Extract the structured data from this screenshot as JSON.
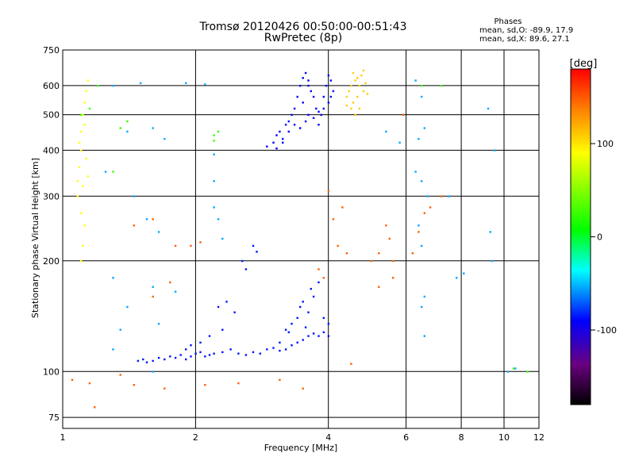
{
  "chart_data": {
    "type": "scatter",
    "title": "Tromsø 20120426 00:50:00-00:51:43",
    "subtitle": "RwPretec (8p)",
    "xlabel": "Frequency [MHz]",
    "ylabel": "Stationary phase Virtual Height [km]",
    "x_scale": "log",
    "y_scale": "log",
    "xlim": [
      1,
      12
    ],
    "ylim": [
      70,
      750
    ],
    "x_ticks": [
      1,
      2,
      4,
      6,
      8,
      10,
      12
    ],
    "x_tick_labels": [
      "1",
      "2",
      "4",
      "6",
      "8",
      "10",
      "12"
    ],
    "y_ticks": [
      75,
      100,
      200,
      300,
      400,
      500,
      600,
      750
    ],
    "y_tick_labels": [
      "75",
      "100",
      "200",
      "300",
      "400",
      "500",
      "600",
      "750"
    ],
    "grid": true,
    "phase_info": {
      "heading": "Phases",
      "o_line": "mean, sd,O: -89.9, 17.9",
      "x_line": "mean, sd,X:  89.6, 27.1"
    },
    "colorbar": {
      "label": "[deg]",
      "ticks": [
        100,
        0,
        -100
      ],
      "tick_labels": [
        "100",
        "0",
        "-100"
      ],
      "range": [
        -180,
        180
      ]
    },
    "series": [
      {
        "points": [
          [
            1.48,
            107
          ],
          [
            1.52,
            108
          ],
          [
            1.55,
            106
          ],
          [
            1.6,
            107
          ],
          [
            1.65,
            109
          ],
          [
            1.7,
            108
          ],
          [
            1.75,
            110
          ],
          [
            1.8,
            109
          ],
          [
            1.85,
            111
          ],
          [
            1.9,
            108
          ],
          [
            1.95,
            110
          ],
          [
            2.0,
            112
          ],
          [
            2.05,
            113
          ],
          [
            2.1,
            110
          ],
          [
            2.15,
            111
          ],
          [
            2.2,
            112
          ],
          [
            2.3,
            113
          ],
          [
            2.4,
            115
          ],
          [
            2.5,
            112
          ],
          [
            2.6,
            111
          ],
          [
            2.7,
            113
          ],
          [
            2.8,
            112
          ],
          [
            2.9,
            115
          ],
          [
            3.0,
            116
          ],
          [
            3.1,
            114
          ],
          [
            3.2,
            115
          ],
          [
            3.3,
            118
          ],
          [
            3.4,
            120
          ],
          [
            3.5,
            122
          ],
          [
            3.6,
            125
          ],
          [
            3.7,
            127
          ],
          [
            3.8,
            125
          ],
          [
            3.9,
            128
          ],
          [
            4.0,
            125
          ],
          [
            3.2,
            130
          ],
          [
            3.4,
            140
          ],
          [
            3.6,
            145
          ],
          [
            3.7,
            160
          ],
          [
            3.5,
            155
          ],
          [
            3.8,
            175
          ],
          [
            3.3,
            135
          ],
          [
            2.35,
            155
          ],
          [
            2.25,
            150
          ],
          [
            2.3,
            130
          ],
          [
            2.45,
            145
          ],
          [
            2.55,
            200
          ],
          [
            2.6,
            190
          ],
          [
            2.75,
            212
          ],
          [
            2.7,
            220
          ],
          [
            3.1,
            120
          ],
          [
            3.25,
            128
          ],
          [
            2.05,
            120
          ],
          [
            1.95,
            118
          ],
          [
            1.9,
            115
          ],
          [
            2.15,
            125
          ],
          [
            3.45,
            150
          ],
          [
            3.65,
            168
          ],
          [
            3.9,
            140
          ],
          [
            4.0,
            135
          ],
          [
            3.55,
            132
          ]
        ],
        "value": -95
      },
      {
        "points": [
          [
            2.9,
            410
          ],
          [
            3.0,
            420
          ],
          [
            3.05,
            440
          ],
          [
            3.1,
            450
          ],
          [
            3.15,
            430
          ],
          [
            3.2,
            470
          ],
          [
            3.25,
            480
          ],
          [
            3.3,
            500
          ],
          [
            3.35,
            520
          ],
          [
            3.4,
            560
          ],
          [
            3.45,
            600
          ],
          [
            3.5,
            630
          ],
          [
            3.55,
            650
          ],
          [
            3.6,
            620
          ],
          [
            3.65,
            580
          ],
          [
            3.7,
            560
          ],
          [
            3.75,
            520
          ],
          [
            3.8,
            510
          ],
          [
            3.85,
            500
          ],
          [
            3.9,
            560
          ],
          [
            3.95,
            600
          ],
          [
            4.0,
            640
          ],
          [
            4.05,
            620
          ],
          [
            4.1,
            580
          ],
          [
            3.55,
            480
          ],
          [
            3.45,
            460
          ],
          [
            3.35,
            470
          ],
          [
            3.25,
            450
          ],
          [
            3.15,
            420
          ],
          [
            3.05,
            405
          ],
          [
            3.6,
            500
          ],
          [
            3.7,
            490
          ],
          [
            3.8,
            470
          ],
          [
            3.9,
            520
          ],
          [
            4.0,
            540
          ],
          [
            3.5,
            540
          ],
          [
            3.6,
            600
          ],
          [
            4.05,
            560
          ]
        ],
        "value": -100
      },
      {
        "points": [
          [
            4.4,
            560
          ],
          [
            4.45,
            580
          ],
          [
            4.5,
            600
          ],
          [
            4.55,
            540
          ],
          [
            4.6,
            620
          ],
          [
            4.65,
            560
          ],
          [
            4.7,
            600
          ],
          [
            4.75,
            640
          ],
          [
            4.8,
            580
          ],
          [
            4.85,
            610
          ],
          [
            4.5,
            520
          ],
          [
            4.6,
            500
          ],
          [
            4.9,
            570
          ],
          [
            4.4,
            530
          ],
          [
            4.55,
            650
          ],
          [
            4.7,
            520
          ],
          [
            4.8,
            660
          ],
          [
            4.65,
            630
          ]
        ],
        "value": 110
      },
      {
        "points": [
          [
            1.08,
            300
          ],
          [
            1.08,
            330
          ],
          [
            1.09,
            360
          ],
          [
            1.1,
            400
          ],
          [
            1.1,
            450
          ],
          [
            1.11,
            500
          ],
          [
            1.12,
            540
          ],
          [
            1.13,
            580
          ],
          [
            1.14,
            620
          ],
          [
            1.12,
            250
          ],
          [
            1.11,
            220
          ],
          [
            1.1,
            200
          ],
          [
            1.09,
            420
          ],
          [
            1.12,
            470
          ],
          [
            1.13,
            380
          ],
          [
            1.14,
            340
          ],
          [
            1.1,
            270
          ],
          [
            1.11,
            320
          ]
        ],
        "value": 90
      },
      {
        "points": [
          [
            1.3,
            600
          ],
          [
            1.5,
            610
          ],
          [
            1.9,
            610
          ],
          [
            2.1,
            605
          ],
          [
            1.4,
            450
          ],
          [
            1.6,
            460
          ],
          [
            1.7,
            430
          ],
          [
            1.25,
            350
          ],
          [
            1.45,
            300
          ],
          [
            1.55,
            260
          ],
          [
            1.65,
            240
          ],
          [
            1.3,
            180
          ],
          [
            1.6,
            170
          ],
          [
            1.8,
            165
          ],
          [
            1.4,
            150
          ],
          [
            1.35,
            130
          ],
          [
            1.65,
            135
          ],
          [
            1.3,
            115
          ],
          [
            1.6,
            100
          ],
          [
            2.2,
            390
          ],
          [
            2.2,
            330
          ],
          [
            2.2,
            280
          ],
          [
            2.25,
            260
          ],
          [
            2.3,
            230
          ],
          [
            6.3,
            620
          ],
          [
            6.5,
            560
          ],
          [
            6.6,
            460
          ],
          [
            6.4,
            430
          ],
          [
            6.3,
            350
          ],
          [
            6.5,
            330
          ],
          [
            6.7,
            300
          ],
          [
            6.4,
            250
          ],
          [
            6.5,
            220
          ],
          [
            6.6,
            160
          ],
          [
            6.5,
            150
          ],
          [
            6.6,
            125
          ],
          [
            9.2,
            520
          ],
          [
            9.5,
            400
          ],
          [
            9.3,
            240
          ],
          [
            9.4,
            200
          ],
          [
            7.5,
            300
          ],
          [
            8.1,
            185
          ],
          [
            7.8,
            180
          ],
          [
            10.2,
            100
          ],
          [
            10.6,
            102
          ],
          [
            5.8,
            420
          ],
          [
            5.4,
            450
          ]
        ],
        "value": -60
      },
      {
        "points": [
          [
            1.05,
            95
          ],
          [
            1.15,
            93
          ],
          [
            1.35,
            98
          ],
          [
            1.45,
            92
          ],
          [
            1.7,
            90
          ],
          [
            2.1,
            92
          ],
          [
            2.5,
            93
          ],
          [
            3.1,
            95
          ],
          [
            3.5,
            90
          ],
          [
            4.5,
            105
          ],
          [
            5.0,
            200
          ],
          [
            5.2,
            210
          ],
          [
            5.6,
            200
          ],
          [
            6.2,
            210
          ],
          [
            6.4,
            240
          ],
          [
            6.6,
            270
          ],
          [
            6.8,
            280
          ],
          [
            7.2,
            300
          ],
          [
            5.4,
            250
          ],
          [
            5.5,
            230
          ],
          [
            4.4,
            210
          ],
          [
            4.2,
            220
          ],
          [
            4.1,
            260
          ],
          [
            4.3,
            280
          ],
          [
            1.95,
            220
          ],
          [
            2.05,
            225
          ],
          [
            4.0,
            310
          ],
          [
            5.9,
            500
          ],
          [
            1.6,
            260
          ],
          [
            1.8,
            220
          ],
          [
            1.45,
            250
          ],
          [
            1.6,
            160
          ],
          [
            1.75,
            175
          ],
          [
            5.6,
            180
          ],
          [
            5.2,
            170
          ],
          [
            3.9,
            180
          ],
          [
            3.8,
            190
          ],
          [
            1.18,
            80
          ]
        ],
        "value": 150
      },
      {
        "points": [
          [
            1.2,
            600
          ],
          [
            1.4,
            480
          ],
          [
            1.35,
            460
          ],
          [
            2.2,
            425
          ],
          [
            2.25,
            450
          ],
          [
            2.2,
            440
          ],
          [
            1.1,
            500
          ],
          [
            1.15,
            520
          ],
          [
            10.5,
            102
          ],
          [
            11.3,
            100
          ],
          [
            6.5,
            600
          ],
          [
            7.2,
            600
          ],
          [
            1.3,
            350
          ]
        ],
        "value": 20
      }
    ]
  }
}
